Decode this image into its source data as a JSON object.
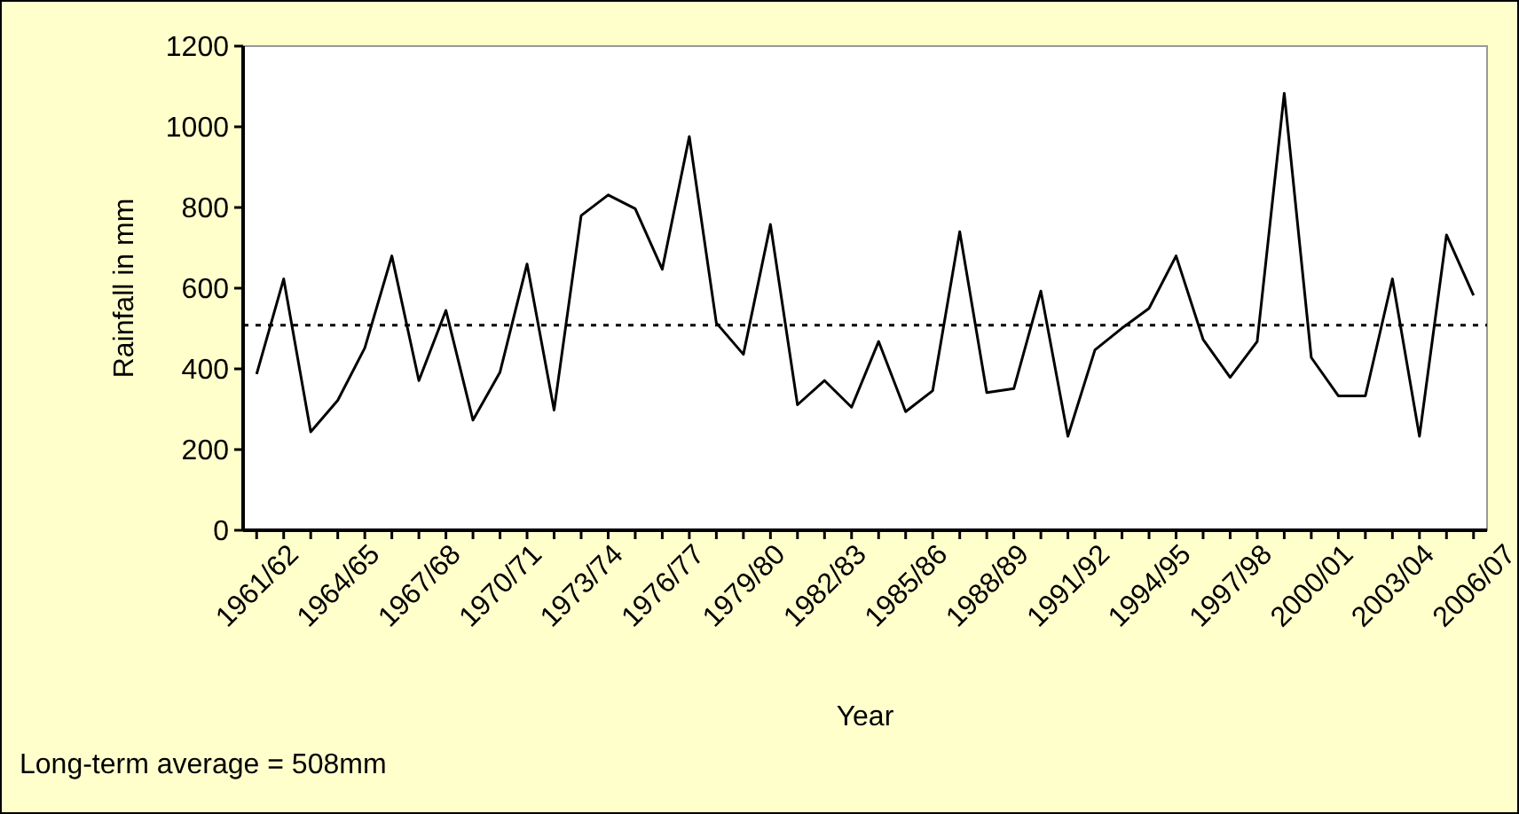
{
  "chart_data": {
    "type": "line",
    "xlabel": "Year",
    "ylabel": "Rainfall in mm",
    "categories": [
      "1961/62",
      null,
      null,
      "1964/65",
      null,
      null,
      "1967/68",
      null,
      null,
      "1970/71",
      null,
      null,
      "1973/74",
      null,
      null,
      "1976/77",
      null,
      null,
      "1979/80",
      null,
      null,
      "1982/83",
      null,
      null,
      "1985/86",
      null,
      null,
      "1988/89",
      null,
      null,
      "1991/92",
      null,
      null,
      "1994/95",
      null,
      null,
      "1997/98",
      null,
      null,
      "2000/01",
      null,
      null,
      "2003/04",
      null,
      null,
      "2006/07"
    ],
    "series": [
      {
        "color": "#000000",
        "values": [
          387,
          623,
          244,
          322,
          452,
          680,
          371,
          545,
          273,
          392,
          660,
          298,
          780,
          831,
          797,
          647,
          976,
          514,
          436,
          758,
          311,
          371,
          305,
          468,
          294,
          346,
          740,
          341,
          351,
          593,
          233,
          447,
          501,
          550,
          680,
          473,
          379,
          468,
          1083,
          428,
          333,
          333,
          623,
          233,
          732,
          582
        ]
      }
    ],
    "ylim": [
      0,
      1200
    ],
    "yticks": [
      0,
      200,
      400,
      600,
      800,
      1000,
      1200
    ],
    "grid": false,
    "marker": "none",
    "line_style": "solid",
    "ref_lines": [
      {
        "axis": "y",
        "value": 508,
        "line_style": "dotted",
        "color": "#000000"
      }
    ],
    "annotations": [
      "Long-term average = 508mm"
    ]
  }
}
